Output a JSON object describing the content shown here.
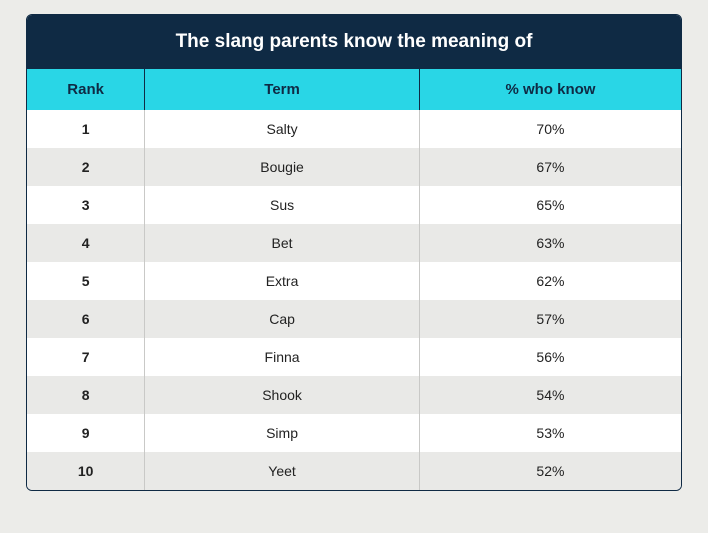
{
  "table": {
    "title": "The slang parents know the meaning of",
    "columns": [
      "Rank",
      "Term",
      "% who know"
    ],
    "rows": [
      {
        "rank": "1",
        "term": "Salty",
        "pct": "70%"
      },
      {
        "rank": "2",
        "term": "Bougie",
        "pct": "67%"
      },
      {
        "rank": "3",
        "term": "Sus",
        "pct": "65%"
      },
      {
        "rank": "4",
        "term": "Bet",
        "pct": "63%"
      },
      {
        "rank": "5",
        "term": "Extra",
        "pct": "62%"
      },
      {
        "rank": "6",
        "term": "Cap",
        "pct": "57%"
      },
      {
        "rank": "7",
        "term": "Finna",
        "pct": "56%"
      },
      {
        "rank": "8",
        "term": "Shook",
        "pct": "54%"
      },
      {
        "rank": "9",
        "term": "Simp",
        "pct": "53%"
      },
      {
        "rank": "10",
        "term": "Yeet",
        "pct": "52%"
      }
    ],
    "colors": {
      "title_bg": "#0f2a44",
      "title_text": "#ffffff",
      "header_bg": "#29d6e6",
      "header_text": "#0f2a44",
      "row_odd_bg": "#ffffff",
      "row_even_bg": "#e9e9e7",
      "page_bg": "#ecece9",
      "outer_border": "#0f2a44",
      "inner_border": "#c9c9c7"
    },
    "font_sizes": {
      "title": 19,
      "header": 15,
      "cell": 14
    },
    "col_widths_pct": [
      18,
      42,
      40
    ]
  }
}
